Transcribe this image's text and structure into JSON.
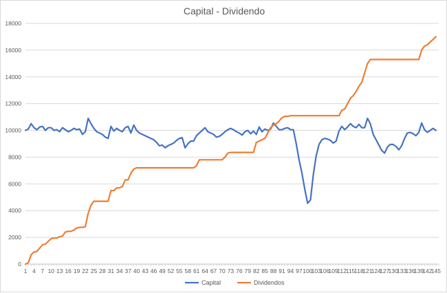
{
  "chart_data": {
    "type": "line",
    "title": "Capital - Dividendo",
    "xlabel": "",
    "ylabel": "",
    "ylim": [
      0,
      18000
    ],
    "yticks": [
      0,
      2000,
      4000,
      6000,
      8000,
      10000,
      12000,
      14000,
      16000,
      18000
    ],
    "grid": "horizontal",
    "legend_position": "bottom",
    "x_count": 146,
    "x_tick_labels": [
      "1",
      "4",
      "7",
      "10",
      "13",
      "16",
      "19",
      "22",
      "25",
      "28",
      "31",
      "34",
      "37",
      "40",
      "43",
      "46",
      "49",
      "52",
      "55",
      "58",
      "61",
      "64",
      "67",
      "70",
      "73",
      "76",
      "79",
      "82",
      "85",
      "88",
      "91",
      "94",
      "97",
      "100",
      "103",
      "106",
      "109",
      "112",
      "115",
      "118",
      "121",
      "124",
      "127",
      "130",
      "133",
      "136",
      "139",
      "142",
      "145"
    ],
    "series": [
      {
        "name": "Capital",
        "color": "#4472c4",
        "keypoints": [
          [
            1,
            10000
          ],
          [
            2,
            10100
          ],
          [
            3,
            10500
          ],
          [
            4,
            10200
          ],
          [
            5,
            10050
          ],
          [
            6,
            10250
          ],
          [
            7,
            10300
          ],
          [
            8,
            10000
          ],
          [
            9,
            10200
          ],
          [
            10,
            10200
          ],
          [
            11,
            10000
          ],
          [
            12,
            10050
          ],
          [
            13,
            9900
          ],
          [
            14,
            10200
          ],
          [
            15,
            10050
          ],
          [
            16,
            9900
          ],
          [
            17,
            10000
          ],
          [
            18,
            10150
          ],
          [
            19,
            10050
          ],
          [
            20,
            10100
          ],
          [
            21,
            9700
          ],
          [
            22,
            9900
          ],
          [
            23,
            10900
          ],
          [
            24,
            10500
          ],
          [
            25,
            10150
          ],
          [
            26,
            9900
          ],
          [
            27,
            9800
          ],
          [
            28,
            9700
          ],
          [
            29,
            9500
          ],
          [
            30,
            9400
          ],
          [
            31,
            10300
          ],
          [
            32,
            9950
          ],
          [
            33,
            10150
          ],
          [
            34,
            10000
          ],
          [
            35,
            9900
          ],
          [
            36,
            10200
          ],
          [
            37,
            10300
          ],
          [
            38,
            9800
          ],
          [
            39,
            10400
          ],
          [
            40,
            10000
          ],
          [
            41,
            9800
          ],
          [
            42,
            9700
          ],
          [
            43,
            9600
          ],
          [
            44,
            9500
          ],
          [
            45,
            9400
          ],
          [
            46,
            9300
          ],
          [
            47,
            9100
          ],
          [
            48,
            8850
          ],
          [
            49,
            8900
          ],
          [
            50,
            8700
          ],
          [
            51,
            8850
          ],
          [
            52,
            8950
          ],
          [
            53,
            9050
          ],
          [
            54,
            9250
          ],
          [
            55,
            9400
          ],
          [
            56,
            9450
          ],
          [
            57,
            8700
          ],
          [
            58,
            9000
          ],
          [
            59,
            9200
          ],
          [
            60,
            9200
          ],
          [
            61,
            9600
          ],
          [
            62,
            9800
          ],
          [
            63,
            10000
          ],
          [
            64,
            10200
          ],
          [
            65,
            9900
          ],
          [
            66,
            9800
          ],
          [
            67,
            9700
          ],
          [
            68,
            9500
          ],
          [
            69,
            9550
          ],
          [
            70,
            9700
          ],
          [
            71,
            9900
          ],
          [
            72,
            10050
          ],
          [
            73,
            10150
          ],
          [
            74,
            10050
          ],
          [
            75,
            9900
          ],
          [
            76,
            9800
          ],
          [
            77,
            9650
          ],
          [
            78,
            9900
          ],
          [
            79,
            10000
          ],
          [
            80,
            9750
          ],
          [
            81,
            9950
          ],
          [
            82,
            9700
          ],
          [
            83,
            10250
          ],
          [
            84,
            9900
          ],
          [
            85,
            10100
          ],
          [
            86,
            10000
          ],
          [
            87,
            10100
          ],
          [
            88,
            10550
          ],
          [
            89,
            10300
          ],
          [
            90,
            10050
          ],
          [
            91,
            10050
          ],
          [
            92,
            10150
          ],
          [
            93,
            10200
          ],
          [
            94,
            10050
          ],
          [
            95,
            10050
          ],
          [
            96,
            9000
          ],
          [
            97,
            7800
          ],
          [
            98,
            6800
          ],
          [
            99,
            5600
          ],
          [
            100,
            4550
          ],
          [
            101,
            4800
          ],
          [
            102,
            6700
          ],
          [
            103,
            8100
          ],
          [
            104,
            8950
          ],
          [
            105,
            9300
          ],
          [
            106,
            9400
          ],
          [
            107,
            9350
          ],
          [
            108,
            9250
          ],
          [
            109,
            9050
          ],
          [
            110,
            9200
          ],
          [
            111,
            9950
          ],
          [
            112,
            10300
          ],
          [
            113,
            10050
          ],
          [
            114,
            10250
          ],
          [
            115,
            10500
          ],
          [
            116,
            10300
          ],
          [
            117,
            10200
          ],
          [
            118,
            10450
          ],
          [
            119,
            10200
          ],
          [
            120,
            10200
          ],
          [
            121,
            10900
          ],
          [
            122,
            10500
          ],
          [
            123,
            9700
          ],
          [
            124,
            9300
          ],
          [
            125,
            8900
          ],
          [
            126,
            8500
          ],
          [
            127,
            8300
          ],
          [
            128,
            8750
          ],
          [
            129,
            8950
          ],
          [
            130,
            8950
          ],
          [
            131,
            8800
          ],
          [
            132,
            8550
          ],
          [
            133,
            8850
          ],
          [
            134,
            9400
          ],
          [
            135,
            9800
          ],
          [
            136,
            9850
          ],
          [
            137,
            9750
          ],
          [
            138,
            9600
          ],
          [
            139,
            9850
          ],
          [
            140,
            10550
          ],
          [
            141,
            10050
          ],
          [
            142,
            9850
          ],
          [
            143,
            10000
          ],
          [
            144,
            10150
          ],
          [
            145,
            10000
          ]
        ]
      },
      {
        "name": "Dividendos",
        "color": "#ed7d31",
        "keypoints": [
          [
            1,
            0
          ],
          [
            2,
            100
          ],
          [
            3,
            700
          ],
          [
            4,
            900
          ],
          [
            5,
            950
          ],
          [
            6,
            1200
          ],
          [
            7,
            1450
          ],
          [
            8,
            1500
          ],
          [
            9,
            1700
          ],
          [
            10,
            1900
          ],
          [
            11,
            1950
          ],
          [
            12,
            1950
          ],
          [
            13,
            2050
          ],
          [
            14,
            2100
          ],
          [
            15,
            2400
          ],
          [
            16,
            2450
          ],
          [
            17,
            2450
          ],
          [
            18,
            2550
          ],
          [
            19,
            2700
          ],
          [
            20,
            2750
          ],
          [
            21,
            2750
          ],
          [
            22,
            2800
          ],
          [
            23,
            3800
          ],
          [
            24,
            4400
          ],
          [
            25,
            4700
          ],
          [
            26,
            4700
          ],
          [
            27,
            4700
          ],
          [
            28,
            4700
          ],
          [
            29,
            4700
          ],
          [
            30,
            4700
          ],
          [
            31,
            5500
          ],
          [
            32,
            5500
          ],
          [
            33,
            5700
          ],
          [
            34,
            5700
          ],
          [
            35,
            5800
          ],
          [
            36,
            6300
          ],
          [
            37,
            6300
          ],
          [
            38,
            6800
          ],
          [
            39,
            7100
          ],
          [
            40,
            7200
          ],
          [
            41,
            7200
          ],
          [
            55,
            7200
          ],
          [
            60,
            7200
          ],
          [
            61,
            7350
          ],
          [
            62,
            7800
          ],
          [
            63,
            7800
          ],
          [
            70,
            7800
          ],
          [
            71,
            8000
          ],
          [
            72,
            8300
          ],
          [
            73,
            8350
          ],
          [
            80,
            8350
          ],
          [
            81,
            8350
          ],
          [
            82,
            9100
          ],
          [
            83,
            9200
          ],
          [
            84,
            9300
          ],
          [
            85,
            9400
          ],
          [
            86,
            9800
          ],
          [
            87,
            10200
          ],
          [
            88,
            10400
          ],
          [
            89,
            10500
          ],
          [
            90,
            10700
          ],
          [
            91,
            10950
          ],
          [
            92,
            11050
          ],
          [
            93,
            11050
          ],
          [
            94,
            11100
          ],
          [
            110,
            11100
          ],
          [
            111,
            11100
          ],
          [
            112,
            11500
          ],
          [
            113,
            11600
          ],
          [
            114,
            12000
          ],
          [
            115,
            12400
          ],
          [
            116,
            12600
          ],
          [
            117,
            12900
          ],
          [
            118,
            13300
          ],
          [
            119,
            13600
          ],
          [
            120,
            14300
          ],
          [
            121,
            15000
          ],
          [
            122,
            15300
          ],
          [
            123,
            15300
          ],
          [
            139,
            15300
          ],
          [
            140,
            16000
          ],
          [
            141,
            16300
          ],
          [
            142,
            16400
          ],
          [
            143,
            16600
          ],
          [
            144,
            16800
          ],
          [
            145,
            17000
          ]
        ]
      }
    ]
  }
}
